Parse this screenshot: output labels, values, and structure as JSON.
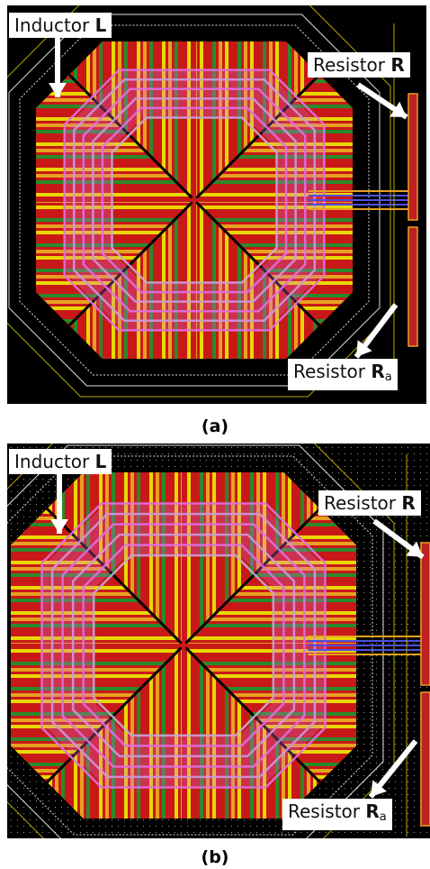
{
  "panels": [
    {
      "id": "a",
      "caption": "(a)",
      "labels": {
        "inductor": {
          "text": "Inductor ",
          "bold": "L"
        },
        "resistor_r": {
          "text": "Resistor ",
          "bold": "R"
        },
        "resistor_ra": {
          "text": "Resistor ",
          "bold": "R",
          "sub": "a"
        }
      },
      "dotted_background": false
    },
    {
      "id": "b",
      "caption": "(b)",
      "labels": {
        "inductor": {
          "text": "Inductor ",
          "bold": "L"
        },
        "resistor_r": {
          "text": "Resistor ",
          "bold": "R"
        },
        "resistor_ra": {
          "text": "Resistor ",
          "bold": "R",
          "sub": "a"
        }
      },
      "dotted_background": true
    }
  ],
  "colors": {
    "background": "#000000",
    "stripe_orange": "#e8a020",
    "stripe_red": "#c81818",
    "stripe_yellow": "#e8d800",
    "stripe_green": "#2a8a2a",
    "trace_pink": "#e070e0",
    "trace_lilac": "#c8a8d8",
    "outline_white": "#e0e0e0",
    "outline_yellow": "#b8a800",
    "resistor_red": "#c02020",
    "via_blue": "#5050e0"
  }
}
